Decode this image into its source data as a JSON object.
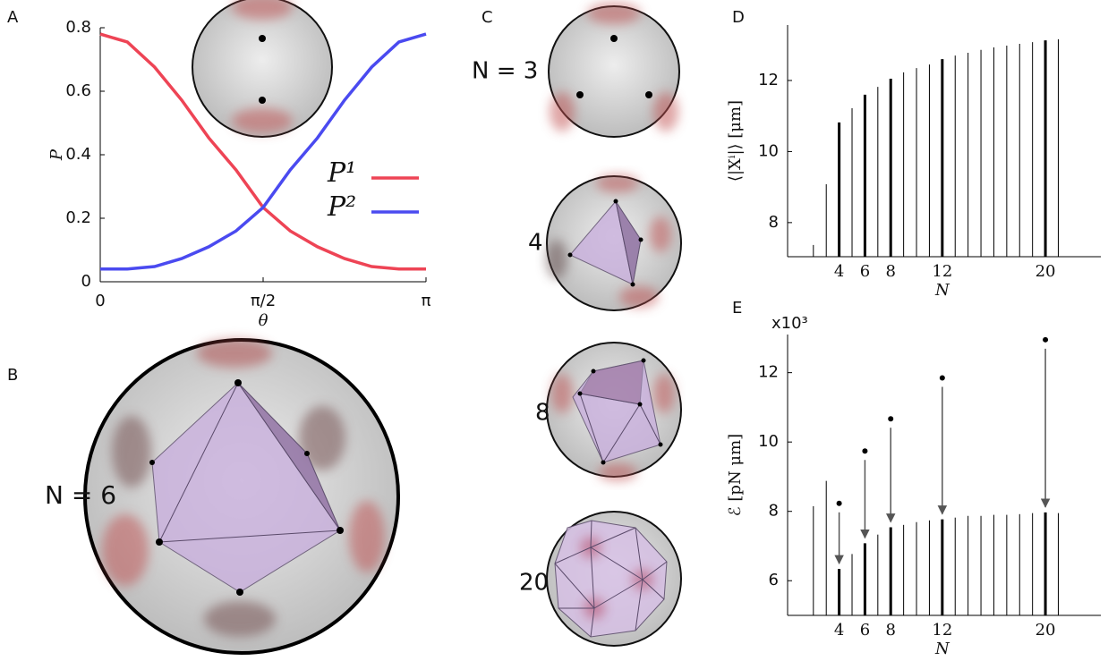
{
  "chart_data": [
    {
      "type": "line",
      "panel": "A",
      "x_label": "θ",
      "y_label": "P",
      "x": [
        0,
        0.2618,
        0.5236,
        0.7854,
        1.0472,
        1.309,
        1.5708,
        1.8326,
        2.0944,
        2.3562,
        2.618,
        2.8798,
        3.1416
      ],
      "series": [
        {
          "name": "P¹",
          "color": "#ee4455",
          "values": [
            0.78,
            0.755,
            0.676,
            0.572,
            0.453,
            0.352,
            0.234,
            0.16,
            0.11,
            0.073,
            0.048,
            0.04,
            0.04
          ]
        },
        {
          "name": "P²",
          "color": "#4a4af0",
          "values": [
            0.04,
            0.04,
            0.048,
            0.073,
            0.11,
            0.16,
            0.234,
            0.352,
            0.453,
            0.572,
            0.676,
            0.755,
            0.78
          ]
        }
      ],
      "xlim": [
        0,
        3.1416
      ],
      "ylim": [
        0,
        0.8
      ],
      "xticks": [
        0,
        {
          "value": 1.5708,
          "label": "π/2"
        },
        {
          "value": 3.1416,
          "label": "π"
        }
      ],
      "yticks": [
        0,
        0.2,
        0.4,
        0.6,
        0.8
      ]
    },
    {
      "type": "stem",
      "panel": "D",
      "x_label": "N",
      "y_label": "⟨|Xⁱ|⟩ [μm]",
      "x": [
        2,
        3,
        4,
        5,
        6,
        7,
        8,
        9,
        10,
        11,
        12,
        13,
        14,
        15,
        16,
        17,
        18,
        19,
        20,
        21
      ],
      "values": [
        7.37,
        9.08,
        10.82,
        11.22,
        11.6,
        11.82,
        12.05,
        12.23,
        12.35,
        12.45,
        12.6,
        12.7,
        12.78,
        12.86,
        12.93,
        12.98,
        13.03,
        13.08,
        13.13,
        13.16
      ],
      "highlight": [
        4,
        6,
        8,
        12,
        20
      ],
      "color": "#000000",
      "xlim": [
        0,
        24.3
      ],
      "ylim": [
        7.04,
        13.56
      ],
      "xticks": [
        4,
        6,
        8,
        12,
        20
      ],
      "yticks": [
        8,
        10,
        12
      ]
    },
    {
      "type": "stem",
      "panel": "E",
      "x_label": "N",
      "y_label": "ℰ [pN μm]",
      "y_multiplier_label": "x10³",
      "x": [
        2,
        3,
        4,
        5,
        6,
        7,
        8,
        9,
        10,
        11,
        12,
        13,
        14,
        15,
        16,
        17,
        18,
        19,
        20,
        21
      ],
      "values": [
        8.15,
        8.88,
        6.34,
        6.77,
        7.08,
        7.33,
        7.54,
        7.61,
        7.69,
        7.74,
        7.77,
        7.82,
        7.87,
        7.87,
        7.9,
        7.9,
        7.92,
        7.95,
        7.97,
        7.95
      ],
      "highlight": [
        4,
        6,
        8,
        12,
        20
      ],
      "color": "#000000",
      "dots": {
        "x": [
          4,
          6,
          8,
          12,
          20
        ],
        "values": [
          8.23,
          9.74,
          10.67,
          11.85,
          12.95
        ]
      },
      "xlim": [
        0,
        24.3
      ],
      "ylim": [
        5,
        13.1
      ],
      "xticks": [
        4,
        6,
        8,
        12,
        20
      ],
      "yticks": [
        6,
        8,
        10,
        12
      ]
    }
  ],
  "illustrations": {
    "B": {
      "panel": "B",
      "label": "N = 6"
    },
    "C": {
      "panel": "C",
      "labels": [
        "N = 3",
        "4",
        "8",
        "20"
      ]
    }
  }
}
